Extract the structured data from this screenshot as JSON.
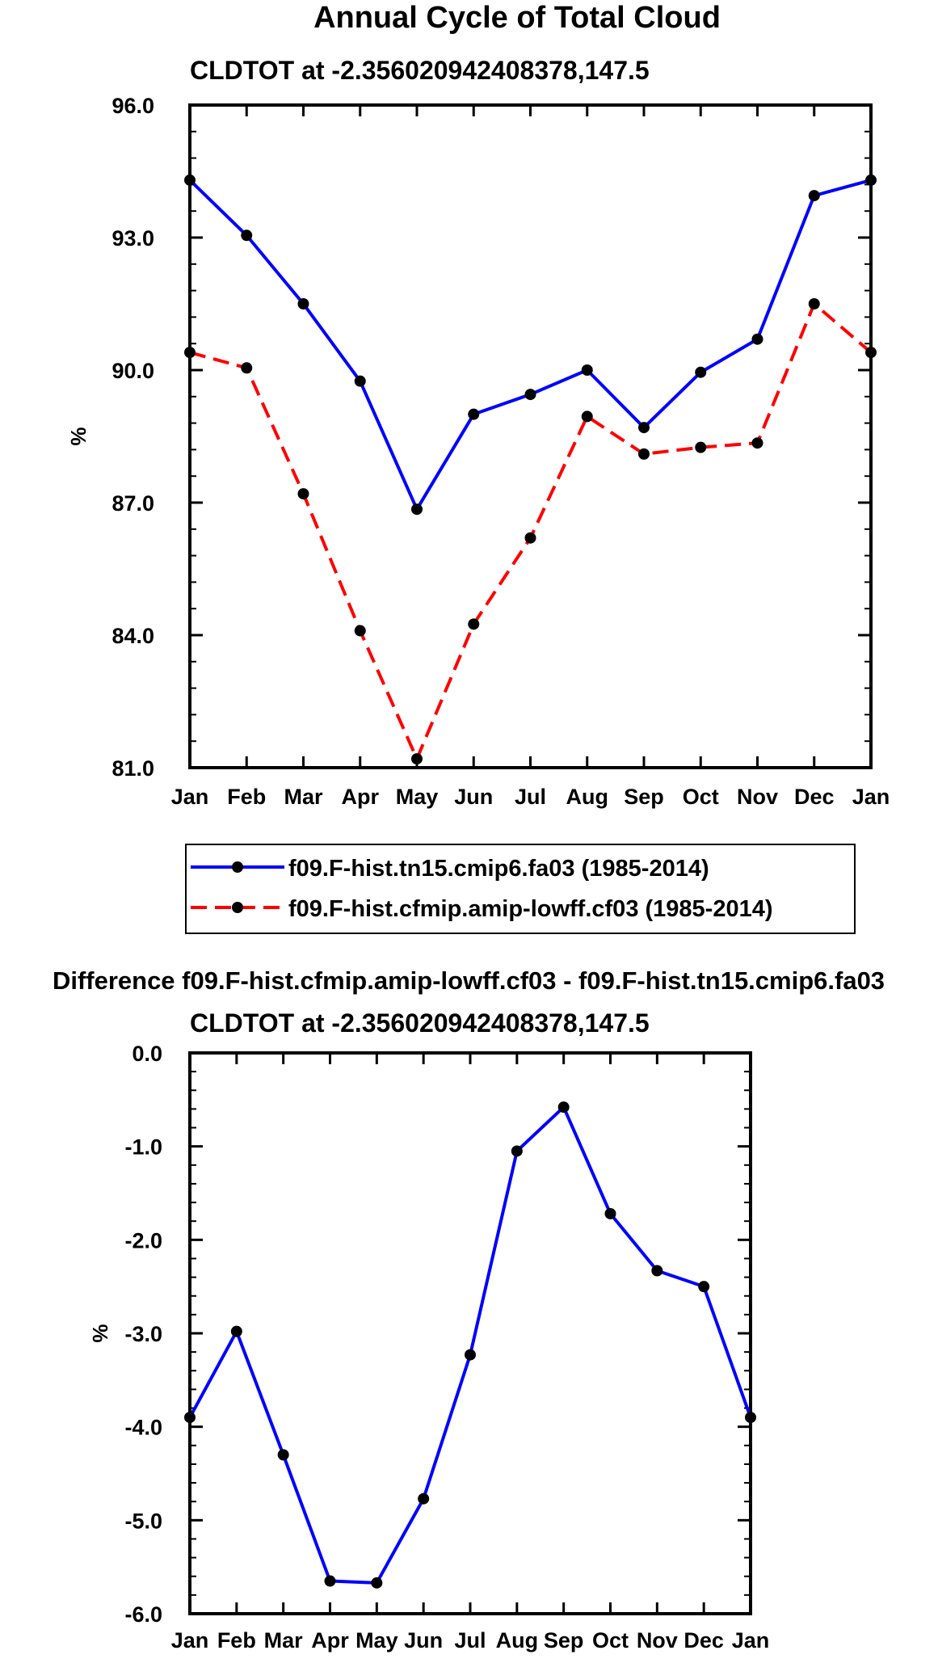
{
  "chart_data": [
    {
      "type": "line",
      "title": "Annual Cycle of Total Cloud",
      "subtitle": "CLDTOT at -2.356020942408378,147.5",
      "xlabel": "",
      "ylabel": "%",
      "categories": [
        "Jan",
        "Feb",
        "Mar",
        "Apr",
        "May",
        "Jun",
        "Jul",
        "Aug",
        "Sep",
        "Oct",
        "Nov",
        "Dec",
        "Jan"
      ],
      "ylim": [
        81.0,
        96.0
      ],
      "yticks": [
        81.0,
        84.0,
        87.0,
        90.0,
        93.0,
        96.0
      ],
      "ytick_labels": [
        "81.0",
        "84.0",
        "87.0",
        "90.0",
        "93.0",
        "96.0"
      ],
      "legend_position": "bottom",
      "series": [
        {
          "name": "f09.F-hist.tn15.cmip6.fa03 (1985-2014)",
          "color": "#0000ff",
          "style": "solid",
          "values": [
            94.3,
            93.05,
            91.5,
            89.75,
            86.85,
            89.0,
            89.45,
            90.0,
            88.7,
            89.95,
            90.7,
            93.95,
            94.3
          ]
        },
        {
          "name": "f09.F-hist.cfmip.amip-lowff.cf03 (1985-2014)",
          "color": "#ff0000",
          "style": "dashed",
          "values": [
            90.4,
            90.05,
            87.2,
            84.1,
            81.2,
            84.25,
            86.2,
            88.95,
            88.1,
            88.25,
            88.35,
            91.5,
            90.4
          ]
        }
      ]
    },
    {
      "type": "line",
      "title": "Difference f09.F-hist.cfmip.amip-lowff.cf03 - f09.F-hist.tn15.cmip6.fa03",
      "subtitle": "CLDTOT at -2.356020942408378,147.5",
      "xlabel": "",
      "ylabel": "%",
      "categories": [
        "Jan",
        "Feb",
        "Mar",
        "Apr",
        "May",
        "Jun",
        "Jul",
        "Aug",
        "Sep",
        "Oct",
        "Nov",
        "Dec",
        "Jan"
      ],
      "ylim": [
        -6.0,
        0.0
      ],
      "yticks": [
        -6.0,
        -5.0,
        -4.0,
        -3.0,
        -2.0,
        -1.0,
        0.0
      ],
      "ytick_labels": [
        "-6.0",
        "-5.0",
        "-4.0",
        "-3.0",
        "-2.0",
        "-1.0",
        "0.0"
      ],
      "series": [
        {
          "name": "difference",
          "color": "#0000ff",
          "style": "solid",
          "values": [
            -3.9,
            -2.98,
            -4.3,
            -5.65,
            -5.67,
            -4.77,
            -3.23,
            -1.05,
            -0.58,
            -1.72,
            -2.33,
            -2.5,
            -3.9
          ]
        }
      ]
    }
  ]
}
